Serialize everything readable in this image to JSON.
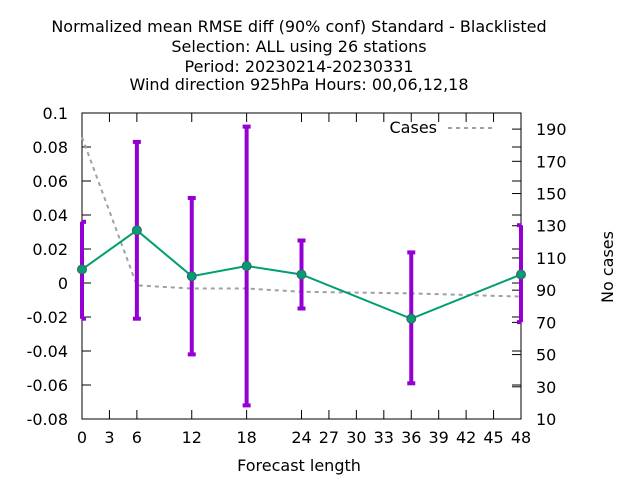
{
  "chart_data": {
    "type": "line",
    "title_lines": [
      "Normalized mean RMSE diff (90% conf) Standard - Blacklisted",
      "Selection: ALL using    26 stations",
      "Period: 20230214-20230331",
      "Wind direction 925hPa   Hours:  00,06,12,18"
    ],
    "xlabel": "Forecast length",
    "ylabel_right": "No cases",
    "xlim": [
      0,
      48
    ],
    "ylim": [
      -0.08,
      0.1
    ],
    "y2lim": [
      10,
      200
    ],
    "x_ticks": [
      0,
      3,
      6,
      12,
      18,
      24,
      27,
      30,
      33,
      36,
      39,
      42,
      45,
      48
    ],
    "x_tick_labels": [
      "0",
      "3",
      "6",
      "12",
      "18",
      "24",
      "27",
      "30",
      "33",
      "36",
      "39",
      "42",
      "45",
      "48"
    ],
    "y_ticks": [
      -0.08,
      -0.06,
      -0.04,
      -0.02,
      0,
      0.02,
      0.04,
      0.06,
      0.08,
      0.1
    ],
    "y_tick_labels": [
      "-0.08",
      "-0.06",
      "-0.04",
      "-0.02",
      "0",
      "0.02",
      "0.04",
      "0.06",
      "0.08",
      "0.1"
    ],
    "y2_ticks": [
      10,
      30,
      50,
      70,
      90,
      110,
      130,
      150,
      170,
      190
    ],
    "y2_tick_labels": [
      "10",
      "30",
      "50",
      "70",
      "90",
      "110",
      "130",
      "150",
      "170",
      "190"
    ],
    "grid": false,
    "legend_position": "top-right",
    "legend_label": "Cases",
    "colors": {
      "main": "#009e73",
      "errorbar": "#9400d3",
      "cases": "#a0a0a0"
    },
    "series": [
      {
        "x": [
          0,
          6,
          12,
          18,
          24,
          36,
          48
        ],
        "y": [
          0.008,
          0.031,
          0.004,
          0.01,
          0.005,
          -0.021,
          0.005
        ],
        "err_low": [
          -0.021,
          -0.021,
          -0.042,
          -0.072,
          -0.015,
          -0.059,
          -0.023
        ],
        "err_high": [
          0.036,
          0.083,
          0.05,
          0.092,
          0.025,
          0.018,
          0.034
        ]
      }
    ],
    "cases_series": {
      "x": [
        0,
        6,
        12,
        18,
        24,
        36,
        48
      ],
      "y": [
        185,
        93,
        91,
        91,
        89,
        88,
        86
      ]
    }
  }
}
